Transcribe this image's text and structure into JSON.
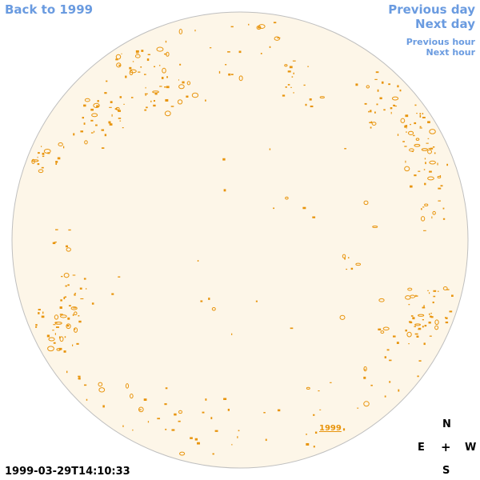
{
  "nav": {
    "back_label": "Back to 1999",
    "prev_day_label": "Previous day",
    "next_day_label": "Next day",
    "prev_hour_label": "Previous hour",
    "next_hour_label": "Next hour"
  },
  "compass": {
    "n": "N",
    "e": "E",
    "center": "+",
    "w": "W",
    "s": "S"
  },
  "timestamp": "1999-03-29T14:10:33",
  "year_label": "1999",
  "colors": {
    "disk_fill": "#fdf6e8",
    "disk_stroke": "#bfbfbf",
    "contour": "#e8940c",
    "link": "#6a9be0"
  }
}
